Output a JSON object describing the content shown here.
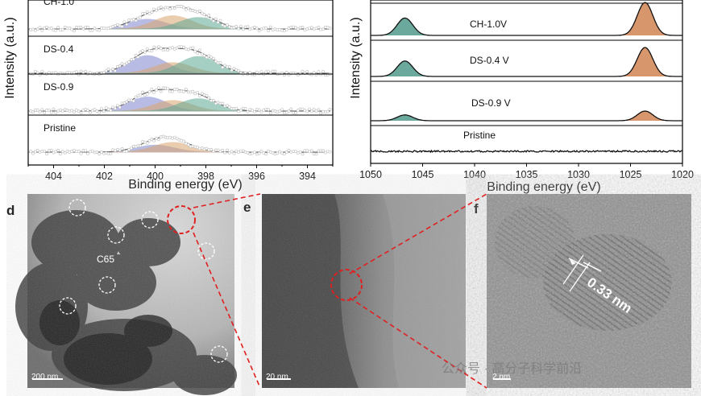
{
  "panel_letters": {
    "d": "d",
    "e": "e",
    "f": "f"
  },
  "labels": {
    "c65": "C65",
    "lattice": "0.33 nm",
    "watermark": "公众号 · 高分子科学前沿"
  },
  "scale_bars": {
    "d": "200 nm",
    "e": "20 nm",
    "f": "2 nm"
  },
  "colors": {
    "blue_peak": "#7f86cf",
    "orange_peak": "#d9a56d",
    "green_peak": "#5fa894",
    "teal_peak": "#3b8c7c",
    "copper_peak": "#c9733a",
    "zoom_line": "#e02020"
  },
  "chart_data": [
    {
      "type": "line",
      "panel": "left spectra (N 1s XPS)",
      "xlabel": "Binding energy (eV)",
      "ylabel": "Intensity (a.u.)",
      "xlim": [
        405,
        393
      ],
      "x_reversed": true,
      "x_ticks": [
        404,
        402,
        400,
        398,
        396,
        394
      ],
      "series": [
        {
          "name": "CH-1.0",
          "components": [
            {
              "center": 400.3,
              "height": 0.55,
              "color": "blue"
            },
            {
              "center": 399.3,
              "height": 0.75,
              "color": "orange"
            },
            {
              "center": 398.3,
              "height": 0.65,
              "color": "green"
            }
          ]
        },
        {
          "name": "DS-0.4",
          "components": [
            {
              "center": 400.3,
              "height": 1.0,
              "color": "blue"
            },
            {
              "center": 399.3,
              "height": 0.6,
              "color": "orange"
            },
            {
              "center": 398.3,
              "height": 0.95,
              "color": "green"
            }
          ]
        },
        {
          "name": "DS-0.9",
          "components": [
            {
              "center": 400.3,
              "height": 0.8,
              "color": "blue"
            },
            {
              "center": 399.3,
              "height": 0.6,
              "color": "orange"
            },
            {
              "center": 398.3,
              "height": 0.7,
              "color": "green"
            }
          ]
        },
        {
          "name": "Pristine",
          "components": [
            {
              "center": 400.0,
              "height": 0.4,
              "color": "blue"
            },
            {
              "center": 399.3,
              "height": 0.55,
              "color": "orange"
            }
          ]
        }
      ],
      "grid": false
    },
    {
      "type": "line",
      "panel": "right spectra (Cu 2p)",
      "xlabel": "Binding energy (eV)",
      "ylabel": "Intensity (a.u.)",
      "xlim": [
        1050,
        1020
      ],
      "x_reversed": true,
      "x_ticks": [
        1050,
        1045,
        1040,
        1035,
        1030,
        1025,
        1020
      ],
      "series": [
        {
          "name": "CH-1.0V",
          "peaks": [
            {
              "center": 1046.7,
              "height": 0.45
            },
            {
              "center": 1023.6,
              "height": 0.85
            }
          ]
        },
        {
          "name": "DS-0.4 V",
          "peaks": [
            {
              "center": 1046.7,
              "height": 0.4
            },
            {
              "center": 1023.6,
              "height": 0.75
            }
          ]
        },
        {
          "name": "DS-0.9 V",
          "peaks": [
            {
              "center": 1046.7,
              "height": 0.15
            },
            {
              "center": 1023.6,
              "height": 0.25
            }
          ]
        },
        {
          "name": "Pristine",
          "peaks": []
        }
      ],
      "grid": false
    }
  ]
}
